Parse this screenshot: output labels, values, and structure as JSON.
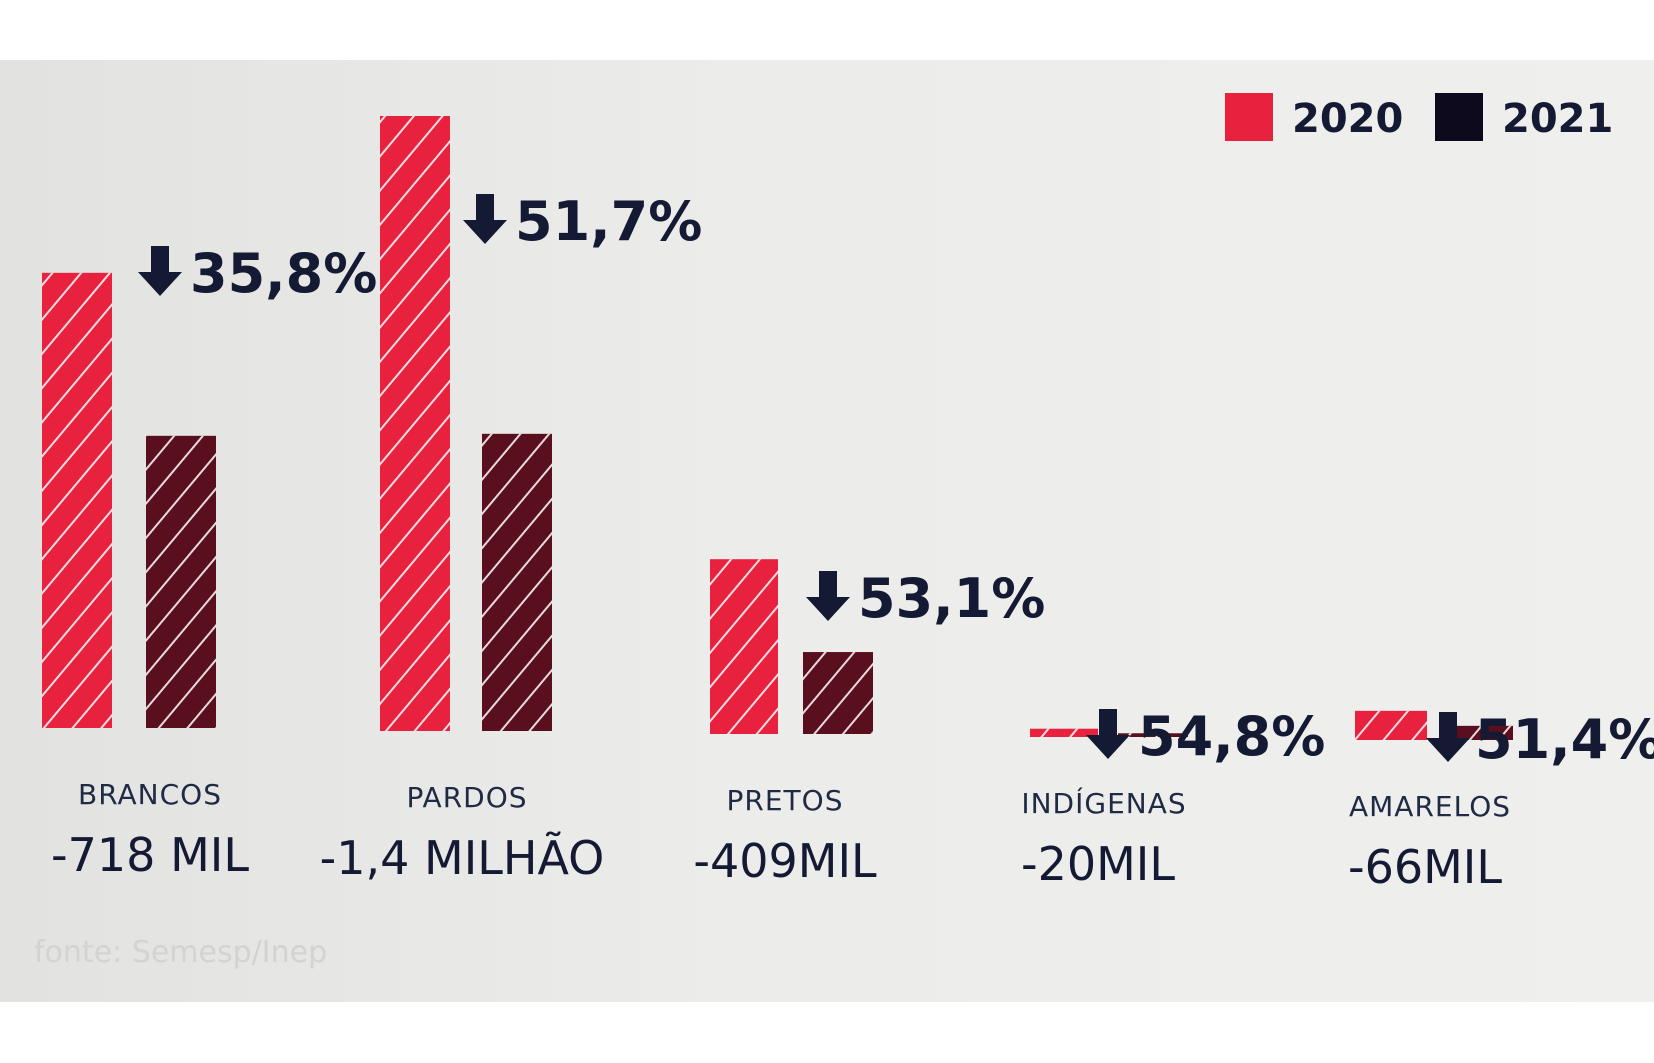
{
  "chart_data": {
    "type": "bar",
    "categories": [
      "BRANCOS",
      "PARDOS",
      "PRETOS",
      "INDÍGENAS",
      "AMARELOS"
    ],
    "series": [
      {
        "name": "2020",
        "values": [
          2005,
          2709,
          770,
          36.5,
          128.4
        ]
      },
      {
        "name": "2021",
        "values": [
          1287,
          1309,
          361,
          16.5,
          62.4
        ]
      }
    ],
    "differences": [
      "-718 MIL",
      "-1,4 MILHÃO",
      "-409MIL",
      "-20MIL",
      "-66MIL"
    ],
    "change_labels": [
      "35,8%",
      "51,7%",
      "53,1%",
      "54,8%",
      "51,4%"
    ],
    "legend": {
      "position": "top-right"
    },
    "colors": {
      "2020": "#e8213f",
      "2021": "#5a0f1f"
    },
    "grid": false,
    "source": "fonte: Semesp/Inep"
  }
}
